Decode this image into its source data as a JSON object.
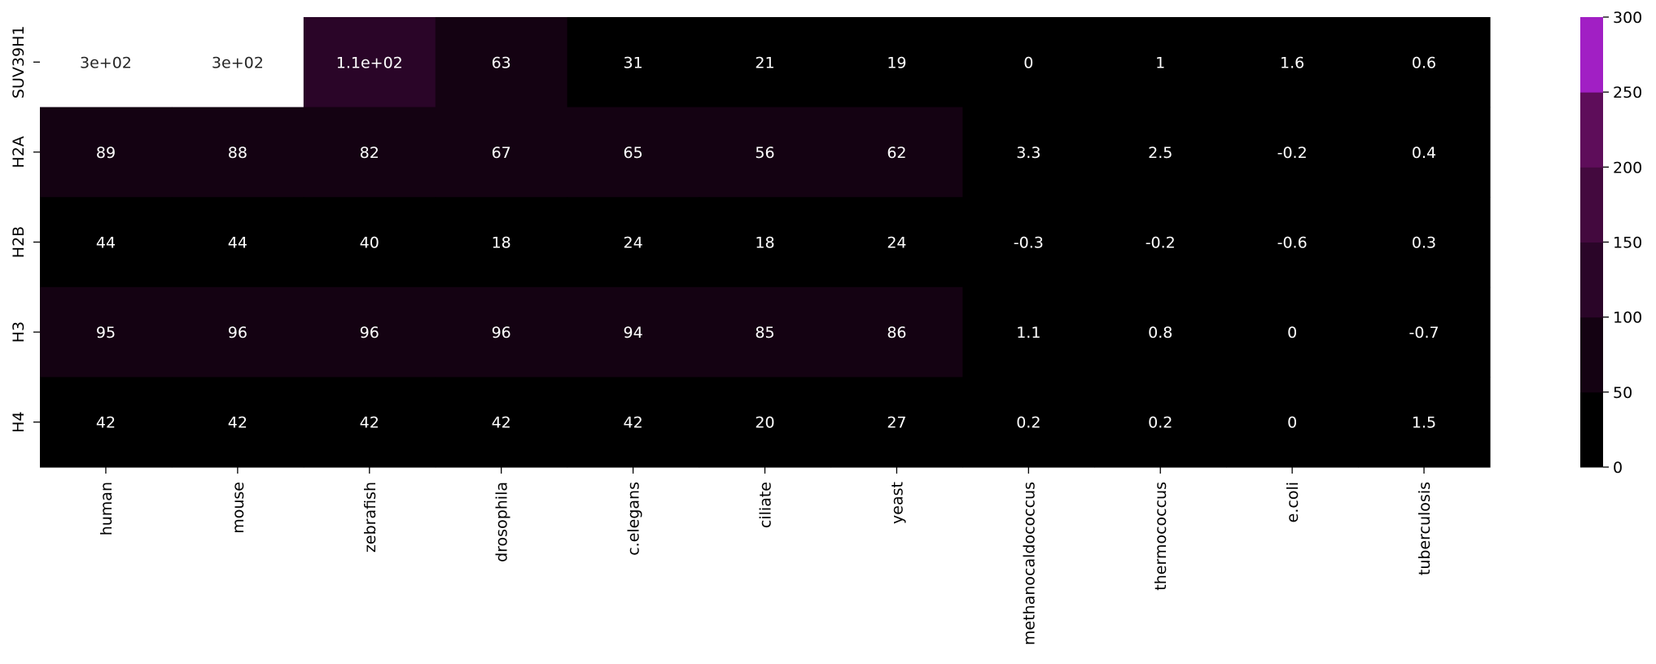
{
  "chart_data": {
    "type": "heatmap",
    "title": "",
    "xlabel": "",
    "ylabel": "",
    "x_categories": [
      "human",
      "mouse",
      "zebrafish",
      "drosophila",
      "c.elegans",
      "ciliate",
      "yeast",
      "methanocaldococcus",
      "thermococcus",
      "e.coli",
      "tuberculosis"
    ],
    "y_categories": [
      "SUV39H1",
      "H2A",
      "H2B",
      "H3",
      "H4"
    ],
    "values": [
      [
        300,
        300,
        110,
        63,
        31,
        21,
        19,
        0,
        1,
        1.6,
        0.6
      ],
      [
        89,
        88,
        82,
        67,
        65,
        56,
        62,
        3.3,
        2.5,
        -0.2,
        0.4
      ],
      [
        44,
        44,
        40,
        18,
        24,
        18,
        24,
        -0.3,
        -0.2,
        -0.6,
        0.3
      ],
      [
        95,
        96,
        96,
        96,
        94,
        85,
        86,
        1.1,
        0.8,
        0,
        -0.7
      ],
      [
        42,
        42,
        42,
        42,
        42,
        20,
        27,
        0.2,
        0.2,
        0,
        1.5
      ]
    ],
    "annotations": [
      [
        "3e+02",
        "3e+02",
        "1.1e+02",
        "63",
        "31",
        "21",
        "19",
        "0",
        "1",
        "1.6",
        "0.6"
      ],
      [
        "89",
        "88",
        "82",
        "67",
        "65",
        "56",
        "62",
        "3.3",
        "2.5",
        "-0.2",
        "0.4"
      ],
      [
        "44",
        "44",
        "40",
        "18",
        "24",
        "18",
        "24",
        "-0.3",
        "-0.2",
        "-0.6",
        "0.3"
      ],
      [
        "95",
        "96",
        "96",
        "96",
        "94",
        "85",
        "86",
        "1.1",
        "0.8",
        "0",
        "-0.7"
      ],
      [
        "42",
        "42",
        "42",
        "42",
        "42",
        "20",
        "27",
        "0.2",
        "0.2",
        "0",
        "1.5"
      ]
    ],
    "colorbar": {
      "range": [
        0,
        300
      ],
      "ticks": [
        0,
        50,
        100,
        150,
        200,
        250,
        300
      ],
      "bin_edges": [
        0,
        50,
        100,
        150,
        200,
        250,
        300
      ],
      "bin_colors": [
        "#000000",
        "#140212",
        "#2a0528",
        "#43093e",
        "#5e0d5a",
        "#a11fc4",
        "#ffffff"
      ]
    },
    "grid": false,
    "legend": "colorbar-right"
  }
}
